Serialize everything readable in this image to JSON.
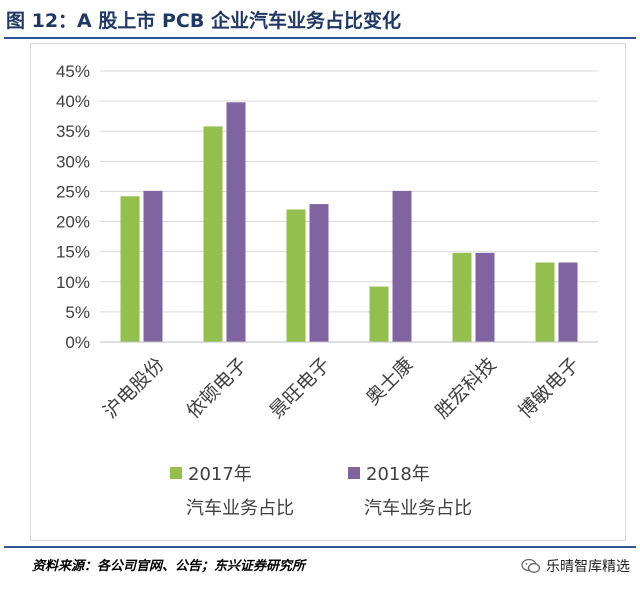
{
  "figure": {
    "title": "图 12：A 股上市 PCB 企业汽车业务占比变化",
    "source": "资料来源：各公司官网、公告；东兴证券研究所",
    "watermark": "乐晴智库精选",
    "watermark_icon": "wechat-icon"
  },
  "chart_data": {
    "type": "bar",
    "categories": [
      "沪电股份",
      "依顿电子",
      "景旺电子",
      "奥士康",
      "胜宏科技",
      "博敏电子"
    ],
    "series": [
      {
        "name": "2017年汽车业务占比",
        "legend_lines": [
          "2017年",
          "汽车业务占比"
        ],
        "color": "#92bf4e",
        "values": [
          24.2,
          35.8,
          22.0,
          9.2,
          14.8,
          13.2
        ]
      },
      {
        "name": "2018年汽车业务占比",
        "legend_lines": [
          "2018年",
          "汽车业务占比"
        ],
        "color": "#8064a2",
        "values": [
          25.1,
          39.8,
          22.9,
          25.1,
          14.8,
          13.2
        ]
      }
    ],
    "yticks": [
      "0%",
      "5%",
      "10%",
      "15%",
      "20%",
      "25%",
      "30%",
      "35%",
      "40%",
      "45%"
    ],
    "ylim": [
      0,
      45
    ],
    "y_unit": "percent",
    "grid": true,
    "legend_position": "bottom"
  }
}
